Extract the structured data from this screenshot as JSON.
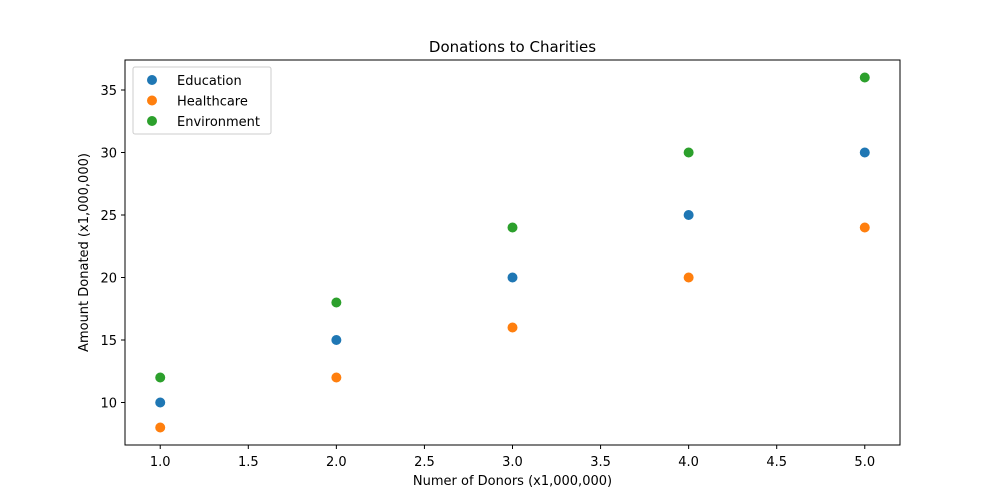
{
  "chart_data": {
    "type": "scatter",
    "title": "Donations to Charities",
    "xlabel": "Numer of Donors (x1,000,000)",
    "ylabel": "Amount Donated (x1,000,000)",
    "xlim": [
      0.8,
      5.2
    ],
    "ylim": [
      6.6,
      37.4
    ],
    "xticks": [
      1.0,
      1.5,
      2.0,
      2.5,
      3.0,
      3.5,
      4.0,
      4.5,
      5.0
    ],
    "xtick_labels": [
      "1.0",
      "1.5",
      "2.0",
      "2.5",
      "3.0",
      "3.5",
      "4.0",
      "4.5",
      "5.0"
    ],
    "yticks": [
      10,
      15,
      20,
      25,
      30,
      35
    ],
    "ytick_labels": [
      "10",
      "15",
      "20",
      "25",
      "30",
      "35"
    ],
    "grid": false,
    "legend_position": "top-left",
    "x": [
      1,
      2,
      3,
      4,
      5
    ],
    "series": [
      {
        "name": "Education",
        "color": "#1f77b4",
        "values": [
          10,
          15,
          20,
          25,
          30
        ]
      },
      {
        "name": "Healthcare",
        "color": "#ff7f0e",
        "values": [
          8,
          12,
          16,
          20,
          24
        ]
      },
      {
        "name": "Environment",
        "color": "#2ca02c",
        "values": [
          12,
          18,
          24,
          30,
          36
        ]
      }
    ]
  }
}
